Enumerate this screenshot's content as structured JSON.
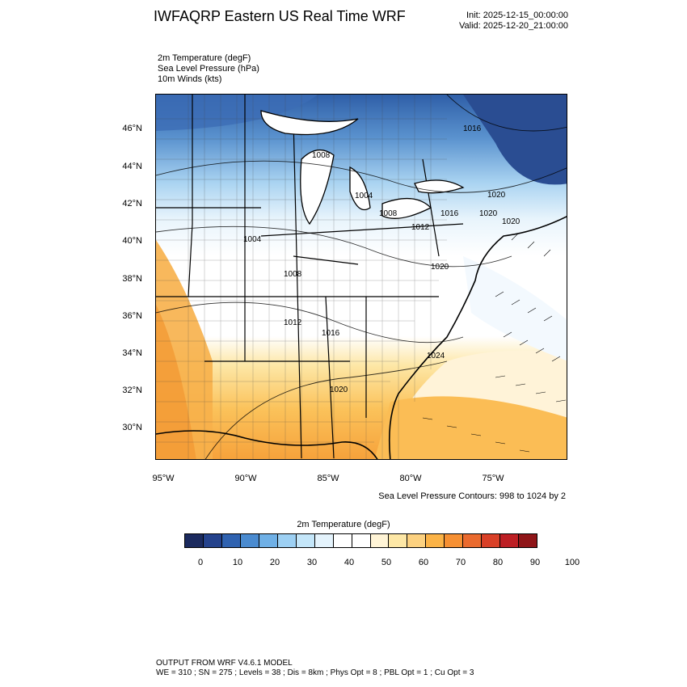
{
  "header": {
    "title": "IWFAQRP Eastern US Real Time WRF",
    "init": "Init: 2025-12-15_00:00:00",
    "valid": "Valid: 2025-12-20_21:00:00"
  },
  "variables": [
    "2m Temperature   (degF)",
    "Sea Level Pressure   (hPa)",
    "10m Winds   (kts)"
  ],
  "map": {
    "lat_labels": [
      "46°N",
      "44°N",
      "42°N",
      "40°N",
      "38°N",
      "36°N",
      "34°N",
      "32°N",
      "30°N"
    ],
    "lon_labels": [
      "95°W",
      "90°W",
      "85°W",
      "80°W",
      "75°W"
    ],
    "isobar_labels": [
      "1016",
      "1020",
      "1008",
      "1004",
      "1008",
      "1016",
      "1012",
      "1020",
      "1020",
      "1004",
      "1008",
      "1012",
      "1016",
      "1024",
      "1020",
      "1020"
    ],
    "contour_note": "Sea Level Pressure Contours: 998 to 1024 by 2"
  },
  "colorbar": {
    "title": "2m Temperature  (degF)",
    "colors": [
      "#1b2a5e",
      "#24428c",
      "#2f62b0",
      "#4a8bd0",
      "#6fb0e6",
      "#9dd0f3",
      "#c4e6f9",
      "#e4f3fc",
      "#ffffff",
      "#ffffff",
      "#fff4d6",
      "#fde7a6",
      "#fcd180",
      "#fbb347",
      "#f69033",
      "#ea6a2e",
      "#d94027",
      "#bd1f24",
      "#8f1518"
    ],
    "tick_labels": [
      "0",
      "10",
      "20",
      "30",
      "40",
      "50",
      "60",
      "70",
      "80",
      "90",
      "100"
    ]
  },
  "footer": {
    "line1": "OUTPUT FROM WRF V4.6.1 MODEL",
    "line2": "WE = 310 ; SN = 275 ; Levels = 38 ; Dis = 8km ; Phys Opt = 8 ; PBL Opt = 1 ; Cu Opt = 3"
  }
}
